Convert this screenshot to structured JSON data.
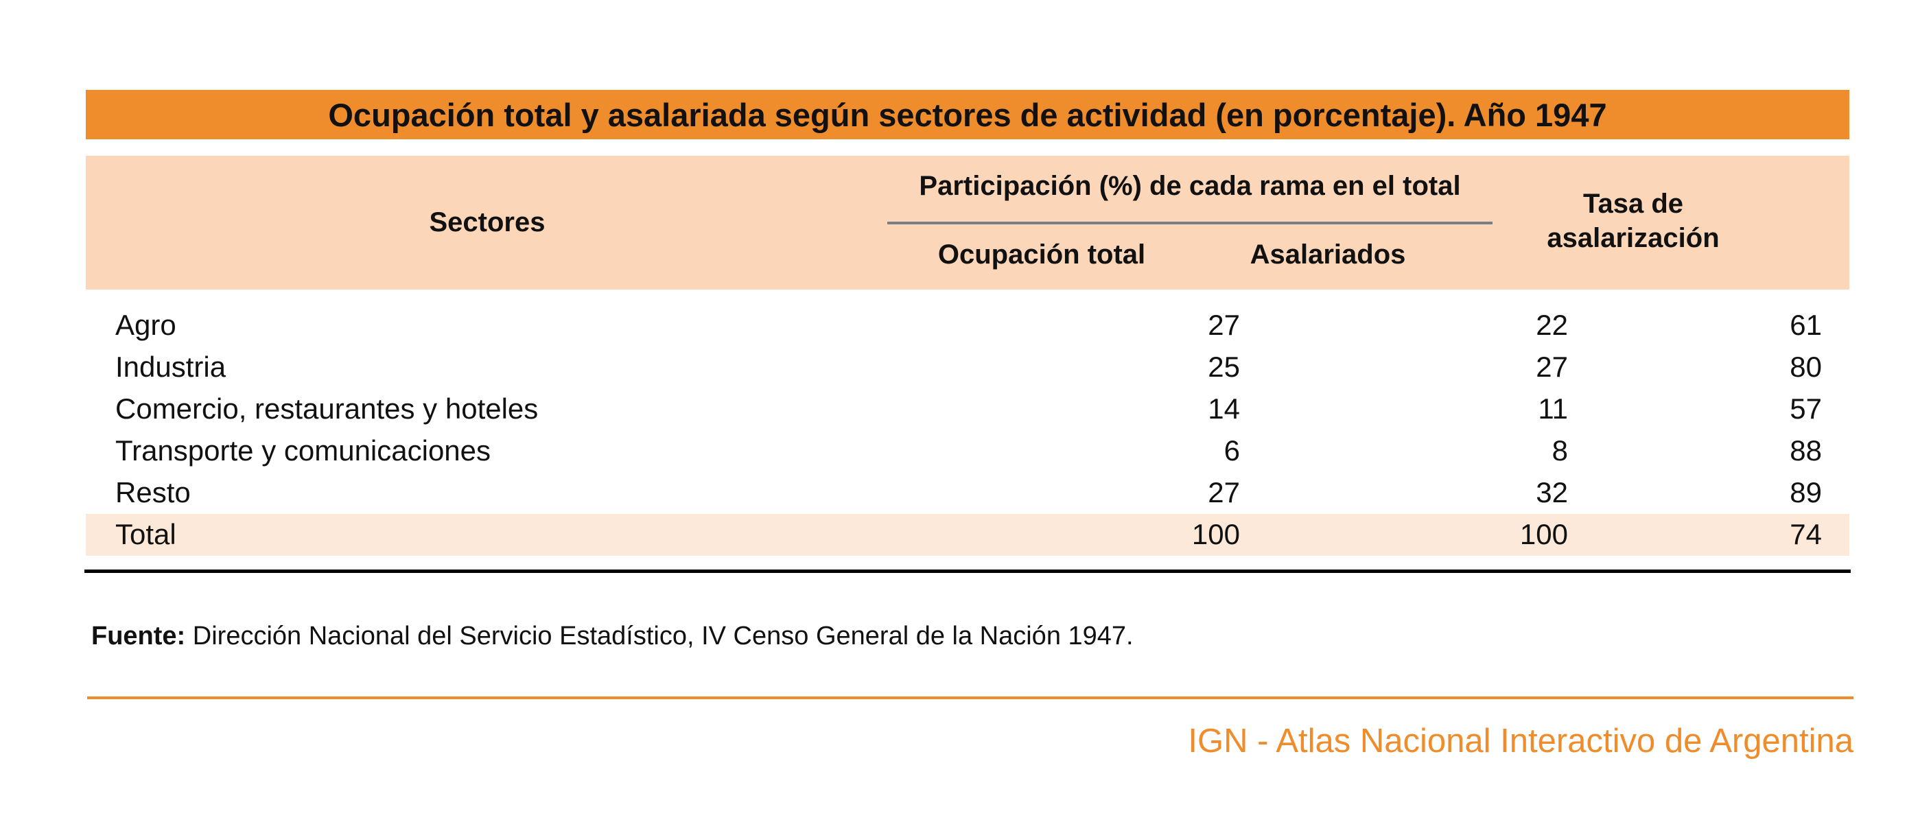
{
  "title": "Ocupación total y asalariada según sectores de actividad (en porcentaje). Año 1947",
  "header": {
    "sectores": "Sectores",
    "participacion": "Participación (%) de cada rama en el total",
    "ocupacion_total": "Ocupación total",
    "asalariados": "Asalariados",
    "tasa_line1": "Tasa de",
    "tasa_line2": "asalarización"
  },
  "rows": [
    {
      "sector": "Agro",
      "ocupacion": "27",
      "asalariados": "22",
      "tasa": "61"
    },
    {
      "sector": "Industria",
      "ocupacion": "25",
      "asalariados": "27",
      "tasa": "80"
    },
    {
      "sector": "Comercio, restaurantes y hoteles",
      "ocupacion": "14",
      "asalariados": "11",
      "tasa": "57"
    },
    {
      "sector": "Transporte y comunicaciones",
      "ocupacion": "6",
      "asalariados": "8",
      "tasa": "88"
    },
    {
      "sector": "Resto",
      "ocupacion": "27",
      "asalariados": "32",
      "tasa": "89"
    },
    {
      "sector": "Total",
      "ocupacion": "100",
      "asalariados": "100",
      "tasa": "74"
    }
  ],
  "source": {
    "label": "Fuente:",
    "text": " Dirección Nacional del Servicio Estadístico, IV Censo General de la Nación 1947."
  },
  "footer": "IGN - Atlas Nacional Interactivo de Argentina",
  "colors": {
    "accent": "#ef8c2b",
    "header_bg": "#fcd6b9",
    "total_row_bg": "#fde9da"
  }
}
